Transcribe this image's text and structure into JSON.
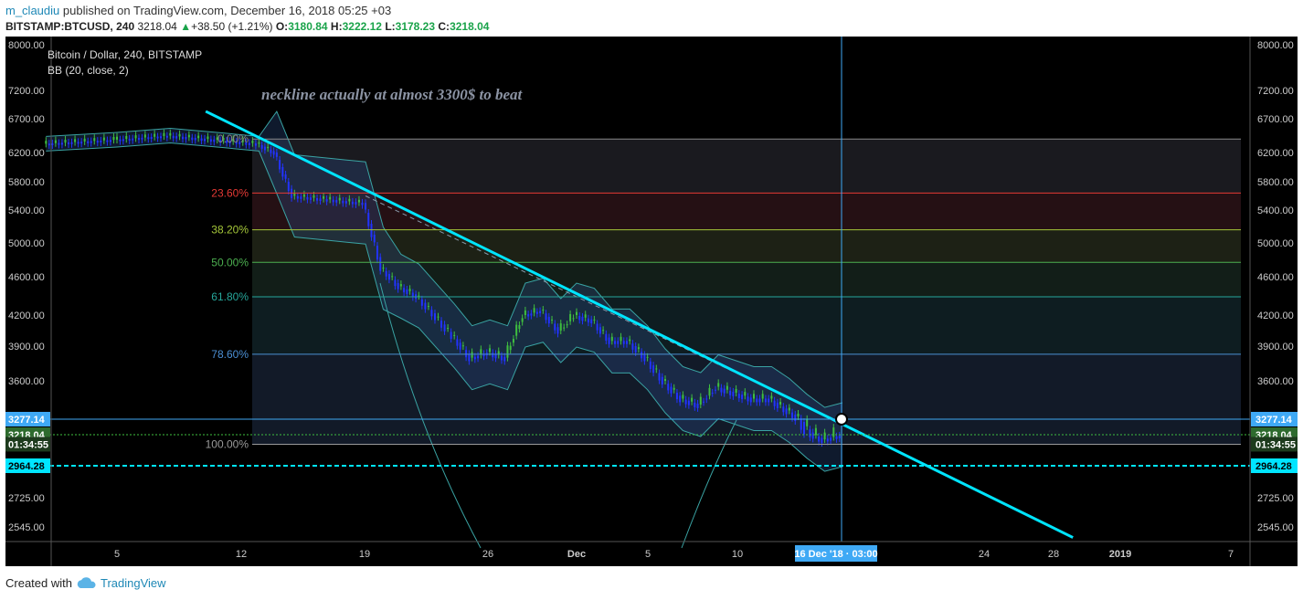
{
  "header": {
    "user": "m_claudiu",
    "published": "published on TradingView.com, December 16, 2018 05:25 +03",
    "symbol": "BITSTAMP:BTCUSD, 240",
    "last": "3218.04",
    "change_arrow": "▲",
    "change": "+38.50 (+1.21%)",
    "o_label": "O:",
    "o": "3180.84",
    "h_label": "H:",
    "h": "3222.12",
    "l_label": "L:",
    "l": "3178.23",
    "c_label": "C:",
    "c": "3218.04"
  },
  "legend": {
    "title": "Bitcoin / Dollar, 240, BITSTAMP",
    "indicator": "BB (20, close, 2)"
  },
  "annotation": "neckline actually at almost 3300$ to beat",
  "footer": {
    "created": "Created with",
    "brand": "TradingView"
  },
  "colors": {
    "background": "#000000",
    "trendline": "#00e5ff",
    "up_candle": "#3fbf3f",
    "down_candle": "#2233ff",
    "bollinger": "#3aa3a3"
  },
  "chart_data": {
    "type": "candlestick",
    "symbol": "BITSTAMP:BTCUSD",
    "timeframe": "240",
    "y_axis_ticks": [
      8000,
      7200,
      6700,
      6200,
      5800,
      5400,
      5000,
      4600,
      4200,
      3900,
      3600,
      3277.14,
      3218.04,
      2964.28,
      2725,
      2545
    ],
    "y_tick_labels": [
      "8000.00",
      "7200.00",
      "6700.00",
      "6200.00",
      "5800.00",
      "5400.00",
      "5000.00",
      "4600.00",
      "4200.00",
      "3900.00",
      "3600.00",
      "2725.00",
      "2545.00"
    ],
    "x_ticks": [
      "5",
      "12",
      "19",
      "26",
      "Dec",
      "5",
      "10",
      "16 Dec '18 · 03:00",
      "24",
      "28",
      "2019",
      "7"
    ],
    "price_labels": [
      {
        "text": "3277.14",
        "value": 3277.14
      },
      {
        "text": "3218.04",
        "value": 3218.04
      },
      {
        "text": "01:34:55",
        "value": 3140
      },
      {
        "text": "2964.28",
        "value": 2964.28
      }
    ],
    "fib_levels": [
      {
        "label": "0.00%",
        "price": 6400,
        "color": "#888888"
      },
      {
        "label": "23.60%",
        "price": 5640,
        "color": "#e53935"
      },
      {
        "label": "38.20%",
        "price": 5160,
        "color": "#a4c639"
      },
      {
        "label": "50.00%",
        "price": 4770,
        "color": "#4caf50"
      },
      {
        "label": "61.80%",
        "price": 4390,
        "color": "#26a69a"
      },
      {
        "label": "78.60%",
        "price": 3830,
        "color": "#4b8fd4"
      },
      {
        "label": "100.00%",
        "price": 3140,
        "color": "#9a9a9a"
      }
    ],
    "trendline": [
      {
        "x": "Nov 10",
        "y": 6830
      },
      {
        "x": "Dec 29",
        "y": 2480
      }
    ],
    "closes": [
      {
        "d": "Nov 1",
        "v": 6330
      },
      {
        "d": "Nov 5",
        "v": 6390
      },
      {
        "d": "Nov 8",
        "v": 6450
      },
      {
        "d": "Nov 11",
        "v": 6380
      },
      {
        "d": "Nov 13",
        "v": 6330
      },
      {
        "d": "Nov 14",
        "v": 6200
      },
      {
        "d": "Nov 15",
        "v": 5600
      },
      {
        "d": "Nov 17",
        "v": 5550
      },
      {
        "d": "Nov 19",
        "v": 5500
      },
      {
        "d": "Nov 20",
        "v": 4700
      },
      {
        "d": "Nov 21",
        "v": 4500
      },
      {
        "d": "Nov 22",
        "v": 4400
      },
      {
        "d": "Nov 24",
        "v": 4000
      },
      {
        "d": "Nov 25",
        "v": 3800
      },
      {
        "d": "Nov 26",
        "v": 3850
      },
      {
        "d": "Nov 27",
        "v": 3800
      },
      {
        "d": "Nov 28",
        "v": 4200
      },
      {
        "d": "Nov 29",
        "v": 4250
      },
      {
        "d": "Nov 30",
        "v": 4050
      },
      {
        "d": "Dec 1",
        "v": 4200
      },
      {
        "d": "Dec 2",
        "v": 4150
      },
      {
        "d": "Dec 3",
        "v": 3950
      },
      {
        "d": "Dec 4",
        "v": 3950
      },
      {
        "d": "Dec 5",
        "v": 3800
      },
      {
        "d": "Dec 6",
        "v": 3600
      },
      {
        "d": "Dec 7",
        "v": 3450
      },
      {
        "d": "Dec 8",
        "v": 3400
      },
      {
        "d": "Dec 9",
        "v": 3550
      },
      {
        "d": "Dec 10",
        "v": 3500
      },
      {
        "d": "Dec 11",
        "v": 3450
      },
      {
        "d": "Dec 12",
        "v": 3450
      },
      {
        "d": "Dec 13",
        "v": 3350
      },
      {
        "d": "Dec 14",
        "v": 3250
      },
      {
        "d": "Dec 15",
        "v": 3180
      },
      {
        "d": "Dec 16",
        "v": 3218.04
      }
    ]
  }
}
